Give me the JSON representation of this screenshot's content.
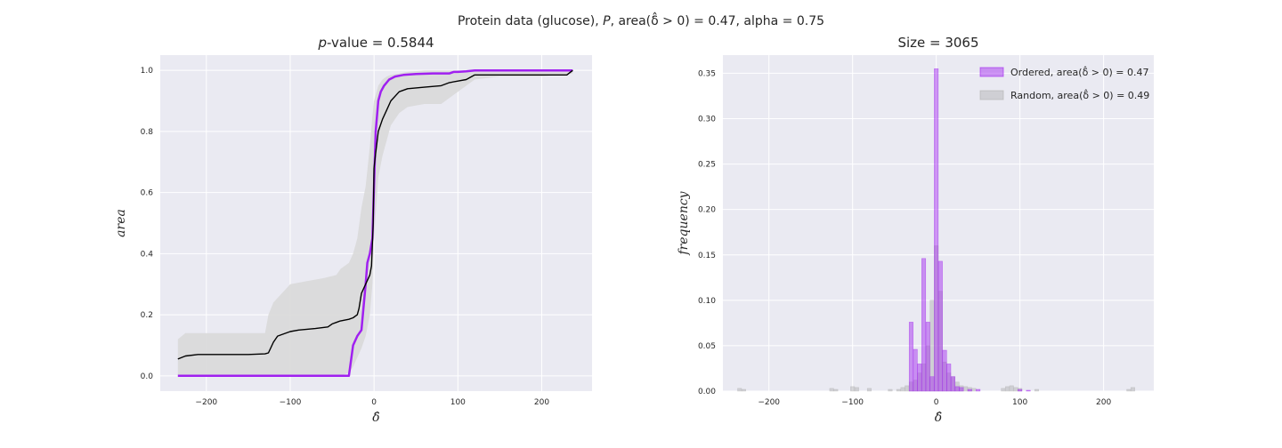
{
  "figure": {
    "suptitle": "Protein data (glucose), P, area(δ̂ > 0) = 0.47, alpha = 0.75"
  },
  "chart_data": [
    {
      "type": "line",
      "title": "p-value = 0.5844",
      "xlabel": "δ̂",
      "ylabel": "area",
      "xlim": [
        -255,
        260
      ],
      "ylim": [
        -0.05,
        1.05
      ],
      "xticks": [
        -200,
        -100,
        0,
        100,
        200
      ],
      "xtick_labels": [
        "−200",
        "−100",
        "0",
        "100",
        "200"
      ],
      "yticks": [
        0.0,
        0.2,
        0.4,
        0.6,
        0.8,
        1.0
      ],
      "ytick_labels": [
        "0.0",
        "0.2",
        "0.4",
        "0.6",
        "0.8",
        "1.0"
      ],
      "grid": true,
      "colors": {
        "ordered": "#a020f0",
        "mean": "#000000",
        "band": "#d9d9d9",
        "background": "#eaeaf2"
      },
      "series": [
        {
          "role": "ordered",
          "x": [
            -234,
            -30,
            -25,
            -20,
            -15,
            -10,
            -8,
            -5,
            -2,
            0,
            2,
            5,
            8,
            12,
            18,
            25,
            35,
            50,
            70,
            90,
            95,
            100,
            110,
            120,
            150,
            200,
            237
          ],
          "values": [
            0.0,
            0.0,
            0.1,
            0.13,
            0.15,
            0.3,
            0.37,
            0.4,
            0.45,
            0.62,
            0.8,
            0.9,
            0.93,
            0.95,
            0.97,
            0.98,
            0.985,
            0.988,
            0.99,
            0.99,
            0.995,
            0.995,
            0.997,
            1.0,
            1.0,
            1.0,
            1.0
          ]
        },
        {
          "role": "random-mean",
          "x": [
            -234,
            -225,
            -210,
            -190,
            -150,
            -130,
            -126,
            -120,
            -115,
            -110,
            -100,
            -90,
            -70,
            -55,
            -50,
            -45,
            -40,
            -30,
            -25,
            -20,
            -18,
            -15,
            -10,
            -5,
            -3,
            -1,
            0,
            2,
            5,
            10,
            15,
            20,
            30,
            40,
            60,
            80,
            90,
            100,
            110,
            120,
            150,
            200,
            230,
            237
          ],
          "values": [
            0.055,
            0.065,
            0.07,
            0.07,
            0.07,
            0.072,
            0.075,
            0.11,
            0.13,
            0.135,
            0.145,
            0.15,
            0.155,
            0.16,
            0.17,
            0.175,
            0.18,
            0.185,
            0.19,
            0.2,
            0.22,
            0.27,
            0.3,
            0.33,
            0.36,
            0.5,
            0.68,
            0.73,
            0.8,
            0.84,
            0.87,
            0.9,
            0.93,
            0.94,
            0.945,
            0.95,
            0.96,
            0.965,
            0.97,
            0.985,
            0.985,
            0.985,
            0.985,
            1.0
          ]
        }
      ],
      "band": {
        "x": [
          -234,
          -225,
          -210,
          -190,
          -150,
          -130,
          -126,
          -120,
          -110,
          -100,
          -80,
          -60,
          -45,
          -40,
          -30,
          -25,
          -20,
          -15,
          -10,
          -5,
          -2,
          0,
          5,
          10,
          15,
          20,
          30,
          40,
          60,
          80,
          100,
          120,
          150,
          200,
          237
        ],
        "lower": [
          0.0,
          0.0,
          0.0,
          0.0,
          0.0,
          0.0,
          0.0,
          0.0,
          0.0,
          0.0,
          0.0,
          0.0,
          0.0,
          0.0,
          0.01,
          0.03,
          0.06,
          0.09,
          0.13,
          0.2,
          0.3,
          0.45,
          0.65,
          0.72,
          0.77,
          0.82,
          0.86,
          0.88,
          0.89,
          0.89,
          0.93,
          0.97,
          0.98,
          0.98,
          0.99
        ],
        "upper": [
          0.12,
          0.14,
          0.14,
          0.14,
          0.14,
          0.14,
          0.2,
          0.24,
          0.27,
          0.3,
          0.31,
          0.32,
          0.33,
          0.35,
          0.37,
          0.4,
          0.45,
          0.55,
          0.62,
          0.75,
          0.85,
          0.9,
          0.95,
          0.97,
          0.98,
          0.985,
          0.99,
          0.995,
          1.0,
          1.0,
          1.0,
          1.0,
          1.0,
          1.0,
          1.0
        ]
      }
    },
    {
      "type": "bar",
      "title": "Size = 3065",
      "xlabel": "δ̂",
      "ylabel": "frequency",
      "xlim": [
        -255,
        260
      ],
      "ylim": [
        0,
        0.37
      ],
      "xticks": [
        -200,
        -100,
        0,
        100,
        200
      ],
      "xtick_labels": [
        "−200",
        "−100",
        "0",
        "100",
        "200"
      ],
      "yticks": [
        0.0,
        0.05,
        0.1,
        0.15,
        0.2,
        0.25,
        0.3,
        0.35
      ],
      "ytick_labels": [
        "0.00",
        "0.05",
        "0.10",
        "0.15",
        "0.20",
        "0.25",
        "0.30",
        "0.35"
      ],
      "grid": true,
      "legend_position": "top-right",
      "bin_width": 4.8,
      "series": [
        {
          "name": "Ordered, area(δ̂ > 0) = 0.47",
          "color": "#a020f0",
          "opacity": 0.45,
          "x": [
            -30,
            -25,
            -20,
            -15,
            -10,
            -5,
            0,
            5,
            10,
            15,
            20,
            25,
            30,
            40,
            50,
            100,
            110
          ],
          "values": [
            0.076,
            0.046,
            0.03,
            0.146,
            0.076,
            0.016,
            0.355,
            0.143,
            0.045,
            0.03,
            0.016,
            0.005,
            0.004,
            0.002,
            0.002,
            0.002,
            0.001
          ]
        },
        {
          "name": "Random, area(δ̂ > 0) = 0.49",
          "color": "#b0b0b0",
          "opacity": 0.45,
          "x": [
            -235,
            -230,
            -125,
            -120,
            -100,
            -95,
            -80,
            -55,
            -45,
            -40,
            -35,
            -30,
            -25,
            -20,
            -15,
            -10,
            -5,
            0,
            5,
            10,
            15,
            20,
            25,
            30,
            35,
            40,
            45,
            80,
            85,
            90,
            95,
            100,
            120,
            230,
            235
          ],
          "values": [
            0.003,
            0.002,
            0.003,
            0.002,
            0.005,
            0.004,
            0.003,
            0.002,
            0.002,
            0.004,
            0.006,
            0.01,
            0.012,
            0.02,
            0.03,
            0.05,
            0.1,
            0.16,
            0.11,
            0.032,
            0.02,
            0.016,
            0.01,
            0.006,
            0.005,
            0.004,
            0.003,
            0.003,
            0.005,
            0.006,
            0.004,
            0.003,
            0.002,
            0.002,
            0.004
          ]
        }
      ]
    }
  ]
}
